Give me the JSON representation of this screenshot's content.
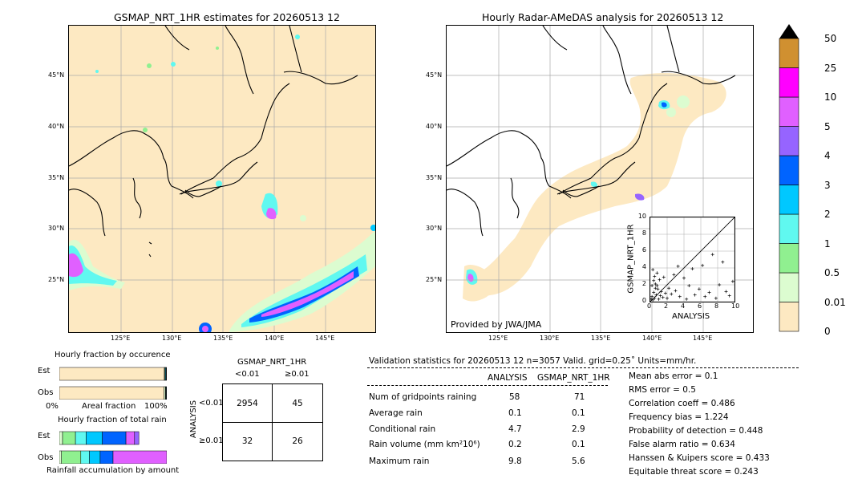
{
  "left_map": {
    "title": "GSMAP_NRT_1HR estimates for 20260513 12",
    "lat_labels": [
      "45°N",
      "40°N",
      "35°N",
      "30°N",
      "25°N"
    ],
    "lon_labels": [
      "125°E",
      "130°E",
      "135°E",
      "140°E",
      "145°E"
    ]
  },
  "right_map": {
    "title": "Hourly Radar-AMeDAS analysis for 20260513 12",
    "lat_labels": [
      "45°N",
      "40°N",
      "35°N",
      "30°N",
      "25°N"
    ],
    "lon_labels": [
      "125°E",
      "130°E",
      "135°E",
      "140°E",
      "145°E"
    ],
    "credit": "Provided by JWA/JMA"
  },
  "colors": {
    "land_bg": "#fde9c2",
    "levels": [
      "#fde9c2",
      "#dcfcd0",
      "#90f090",
      "#60f8f0",
      "#00c8ff",
      "#0064ff",
      "#9664ff",
      "#e060ff",
      "#ff00ff",
      "#d09030"
    ]
  },
  "colorbar": {
    "labels": [
      "0",
      "0.01",
      "0.5",
      "1",
      "2",
      "3",
      "4",
      "5",
      "10",
      "25",
      "50"
    ]
  },
  "chart_data": [
    {
      "type": "scatter",
      "xlabel": "ANALYSIS",
      "ylabel": "GSMAP_NRT_1HR",
      "xlim": [
        0,
        10
      ],
      "ylim": [
        0,
        10
      ],
      "ticks": [
        "0",
        "2",
        "4",
        "6",
        "8",
        "10"
      ],
      "points": [
        [
          0.1,
          0.3
        ],
        [
          0.2,
          0.6
        ],
        [
          0.3,
          0.2
        ],
        [
          0.4,
          1.1
        ],
        [
          0.5,
          0.4
        ],
        [
          0.6,
          2.1
        ],
        [
          0.7,
          0.8
        ],
        [
          0.8,
          3.4
        ],
        [
          0.9,
          1.5
        ],
        [
          1.0,
          0.3
        ],
        [
          1.1,
          2.6
        ],
        [
          1.2,
          0.7
        ],
        [
          1.3,
          1.2
        ],
        [
          1.5,
          0.5
        ],
        [
          1.6,
          2.9
        ],
        [
          1.8,
          1.0
        ],
        [
          2.0,
          0.4
        ],
        [
          2.2,
          1.6
        ],
        [
          2.5,
          0.9
        ],
        [
          2.8,
          3.2
        ],
        [
          3.0,
          1.3
        ],
        [
          3.3,
          4.2
        ],
        [
          3.5,
          0.6
        ],
        [
          4.0,
          2.8
        ],
        [
          4.3,
          0.3
        ],
        [
          4.6,
          1.9
        ],
        [
          5.0,
          3.9
        ],
        [
          5.3,
          0.8
        ],
        [
          5.8,
          1.5
        ],
        [
          6.2,
          4.3
        ],
        [
          6.5,
          0.6
        ],
        [
          7.0,
          1.1
        ],
        [
          7.4,
          5.6
        ],
        [
          7.8,
          0.4
        ],
        [
          8.2,
          2.0
        ],
        [
          8.6,
          4.7
        ],
        [
          9.0,
          1.2
        ],
        [
          9.4,
          0.7
        ],
        [
          9.8,
          2.4
        ],
        [
          0.2,
          1.9
        ],
        [
          0.3,
          3.8
        ],
        [
          0.5,
          3.0
        ],
        [
          0.6,
          1.6
        ],
        [
          0.4,
          2.5
        ],
        [
          0.8,
          1.9
        ]
      ]
    },
    {
      "type": "bar",
      "title": "Hourly fraction by occurence",
      "categories": [
        "Est",
        "Obs"
      ],
      "xlabel": "Areal fraction",
      "x_tick_labels": [
        "0%",
        "100%"
      ],
      "series": [
        {
          "values": [
            0.977,
            0.975
          ]
        },
        {
          "values": [
            0.005,
            0.012
          ]
        },
        {
          "values": [
            0.006,
            0.005
          ]
        },
        {
          "values": [
            0.006,
            0.004
          ]
        },
        {
          "values": [
            0.006,
            0.004
          ]
        }
      ]
    },
    {
      "type": "bar",
      "title": "Hourly fraction of total rain",
      "categories": [
        "Est",
        "Obs"
      ],
      "xlabel": "Rainfall accumulation by amount",
      "series": [
        {
          "values": [
            0.03,
            0.02
          ]
        },
        {
          "values": [
            0.12,
            0.18
          ]
        },
        {
          "values": [
            0.1,
            0.08
          ]
        },
        {
          "values": [
            0.15,
            0.1
          ]
        },
        {
          "values": [
            0.22,
            0.12
          ]
        },
        {
          "values": [
            0.08,
            0.5
          ]
        },
        {
          "values": [
            0.04,
            0.0
          ]
        }
      ]
    }
  ],
  "contingency": {
    "header": "GSMAP_NRT_1HR",
    "col_labels": [
      "<0.01",
      "≥0.01"
    ],
    "row_axis": "ANALYSIS",
    "row_labels": [
      "<0.01",
      "≥0.01"
    ],
    "cells": [
      "2954",
      "45",
      "32",
      "26"
    ]
  },
  "validation": {
    "header": "Validation statistics for 20260513 12  n=3057 Valid. grid=0.25˚ Units=mm/hr.",
    "col_analysis": "ANALYSIS",
    "col_gsmap": "GSMAP_NRT_1HR",
    "rows": [
      {
        "label": "Num of gridpoints raining",
        "a": "58",
        "g": "71"
      },
      {
        "label": "Average rain",
        "a": "0.1",
        "g": "0.1"
      },
      {
        "label": "Conditional rain",
        "a": "4.7",
        "g": "2.9"
      },
      {
        "label": "Rain volume (mm km²10⁶)",
        "a": "0.2",
        "g": "0.1"
      },
      {
        "label": "Maximum rain",
        "a": "9.8",
        "g": "5.6"
      }
    ],
    "scores": [
      "Mean abs error =    0.1",
      "RMS error =    0.5",
      "Correlation coeff =  0.486",
      "Frequency bias =  1.224",
      "Probability of detection =  0.448",
      "False alarm ratio =  0.634",
      "Hanssen & Kuipers score =  0.433",
      "Equitable threat score =  0.243"
    ]
  }
}
